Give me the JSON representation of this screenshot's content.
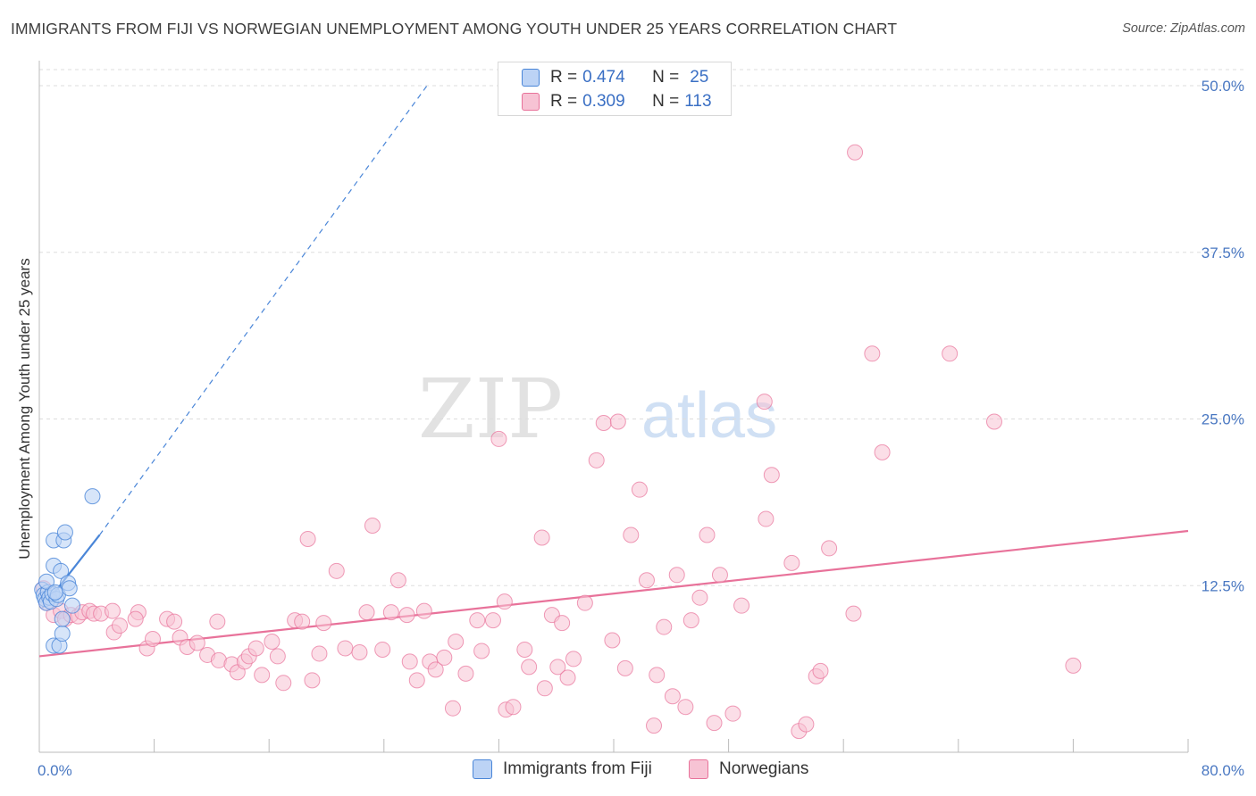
{
  "title": "IMMIGRANTS FROM FIJI VS NORWEGIAN UNEMPLOYMENT AMONG YOUTH UNDER 25 YEARS CORRELATION CHART",
  "source": "Source: ZipAtlas.com",
  "watermark": {
    "zip": "ZIP",
    "atlas": "atlas"
  },
  "colors": {
    "fiji": "#4a86d8",
    "fiji_fill": "#bcd3f5",
    "norwegians": "#e8729a",
    "norwegians_fill": "#f7c3d4",
    "axis_text": "#4a78c2",
    "grid": "#dddddd"
  },
  "legend": {
    "fiji": {
      "r_label": "R =",
      "r_value": "0.474",
      "n_label": "N =",
      "n_value": "25"
    },
    "norwegians": {
      "r_label": "R =",
      "r_value": "0.309",
      "n_label": "N =",
      "n_value": "113"
    }
  },
  "chart_data": {
    "type": "scatter",
    "title": "IMMIGRANTS FROM FIJI VS NORWEGIAN UNEMPLOYMENT AMONG YOUTH UNDER 25 YEARS CORRELATION CHART",
    "xlabel": "",
    "ylabel": "Unemployment Among Youth under 25 years",
    "xlim": [
      0,
      80
    ],
    "ylim": [
      0,
      50
    ],
    "x_tick_labels": [
      "0.0%",
      "80.0%"
    ],
    "y_ticks": [
      12.5,
      25.0,
      37.5,
      50.0
    ],
    "y_tick_labels": [
      "12.5%",
      "25.0%",
      "37.5%",
      "50.0%"
    ],
    "grid": true,
    "legend_position": "top-center",
    "series": [
      {
        "name": "Immigrants from Fiji",
        "R": 0.474,
        "N": 25,
        "points": [
          [
            0.2,
            12.2
          ],
          [
            0.3,
            11.8
          ],
          [
            0.4,
            11.5
          ],
          [
            0.5,
            11.2
          ],
          [
            0.6,
            12.0
          ],
          [
            0.7,
            11.6
          ],
          [
            0.8,
            11.3
          ],
          [
            0.9,
            11.9
          ],
          [
            1.0,
            15.9
          ],
          [
            1.0,
            14.0
          ],
          [
            1.0,
            8.0
          ],
          [
            1.2,
            11.5
          ],
          [
            1.3,
            11.8
          ],
          [
            1.4,
            8.0
          ],
          [
            1.5,
            13.6
          ],
          [
            1.6,
            8.9
          ],
          [
            1.7,
            15.9
          ],
          [
            1.8,
            16.5
          ],
          [
            2.0,
            12.7
          ],
          [
            2.1,
            12.3
          ],
          [
            2.3,
            11.0
          ],
          [
            3.7,
            19.2
          ],
          [
            0.5,
            12.8
          ],
          [
            1.1,
            12.0
          ],
          [
            1.6,
            10.0
          ]
        ],
        "trend": {
          "x0": 0.2,
          "y0": 10.8,
          "x1": 4.2,
          "y1": 16.3,
          "dashed_to": {
            "x": 27.0,
            "y": 50.0
          }
        }
      },
      {
        "name": "Norwegians",
        "R": 0.309,
        "N": 113,
        "points": [
          [
            0.3,
            12.3
          ],
          [
            0.5,
            11.2
          ],
          [
            1.0,
            10.3
          ],
          [
            1.5,
            10.6
          ],
          [
            1.8,
            10.0
          ],
          [
            2.2,
            10.3
          ],
          [
            2.7,
            10.2
          ],
          [
            3.0,
            10.5
          ],
          [
            3.5,
            10.6
          ],
          [
            3.8,
            10.4
          ],
          [
            4.3,
            10.4
          ],
          [
            5.1,
            10.6
          ],
          [
            5.2,
            9.0
          ],
          [
            5.6,
            9.5
          ],
          [
            6.9,
            10.5
          ],
          [
            6.7,
            10.0
          ],
          [
            7.5,
            7.8
          ],
          [
            7.9,
            8.5
          ],
          [
            8.9,
            10.0
          ],
          [
            9.4,
            9.8
          ],
          [
            9.8,
            8.6
          ],
          [
            10.3,
            7.9
          ],
          [
            11.0,
            8.2
          ],
          [
            11.7,
            7.3
          ],
          [
            12.4,
            9.8
          ],
          [
            12.5,
            6.9
          ],
          [
            13.4,
            6.6
          ],
          [
            13.8,
            6.0
          ],
          [
            14.3,
            6.8
          ],
          [
            14.6,
            7.2
          ],
          [
            15.1,
            7.8
          ],
          [
            15.5,
            5.8
          ],
          [
            16.2,
            8.3
          ],
          [
            16.6,
            7.2
          ],
          [
            17.0,
            5.2
          ],
          [
            17.8,
            9.9
          ],
          [
            18.3,
            9.8
          ],
          [
            18.7,
            16.0
          ],
          [
            19.0,
            5.4
          ],
          [
            19.5,
            7.4
          ],
          [
            19.8,
            9.7
          ],
          [
            20.7,
            13.6
          ],
          [
            21.3,
            7.8
          ],
          [
            22.3,
            7.5
          ],
          [
            22.8,
            10.5
          ],
          [
            23.2,
            17.0
          ],
          [
            23.9,
            7.7
          ],
          [
            24.5,
            10.5
          ],
          [
            25.0,
            12.9
          ],
          [
            25.6,
            10.3
          ],
          [
            25.8,
            6.8
          ],
          [
            26.3,
            5.4
          ],
          [
            26.8,
            10.6
          ],
          [
            27.2,
            6.8
          ],
          [
            27.6,
            6.2
          ],
          [
            28.2,
            7.1
          ],
          [
            28.8,
            3.3
          ],
          [
            29.0,
            8.3
          ],
          [
            29.7,
            5.9
          ],
          [
            30.5,
            9.9
          ],
          [
            30.8,
            7.6
          ],
          [
            31.6,
            9.9
          ],
          [
            32.0,
            23.5
          ],
          [
            32.4,
            11.3
          ],
          [
            32.5,
            3.2
          ],
          [
            33.0,
            3.4
          ],
          [
            33.8,
            7.7
          ],
          [
            34.1,
            6.4
          ],
          [
            35.0,
            16.1
          ],
          [
            35.2,
            4.8
          ],
          [
            35.7,
            10.3
          ],
          [
            36.1,
            6.4
          ],
          [
            36.4,
            9.7
          ],
          [
            36.8,
            5.6
          ],
          [
            37.2,
            7.0
          ],
          [
            38.0,
            11.2
          ],
          [
            38.8,
            21.9
          ],
          [
            39.3,
            24.7
          ],
          [
            39.9,
            8.4
          ],
          [
            40.3,
            24.8
          ],
          [
            40.8,
            6.3
          ],
          [
            41.2,
            16.3
          ],
          [
            41.8,
            19.7
          ],
          [
            42.3,
            12.9
          ],
          [
            42.8,
            2.0
          ],
          [
            43.0,
            5.8
          ],
          [
            43.5,
            9.4
          ],
          [
            44.1,
            4.2
          ],
          [
            44.4,
            13.3
          ],
          [
            45.0,
            3.4
          ],
          [
            45.4,
            9.9
          ],
          [
            46.0,
            11.6
          ],
          [
            46.5,
            16.3
          ],
          [
            47.0,
            2.2
          ],
          [
            47.4,
            13.3
          ],
          [
            48.3,
            2.9
          ],
          [
            48.9,
            11.0
          ],
          [
            50.5,
            26.3
          ],
          [
            50.6,
            17.5
          ],
          [
            51.0,
            20.8
          ],
          [
            52.4,
            14.2
          ],
          [
            52.9,
            1.6
          ],
          [
            53.4,
            2.1
          ],
          [
            54.1,
            5.7
          ],
          [
            54.4,
            6.1
          ],
          [
            55.0,
            15.3
          ],
          [
            56.7,
            10.4
          ],
          [
            56.8,
            45.0
          ],
          [
            58.0,
            29.9
          ],
          [
            58.7,
            22.5
          ],
          [
            63.4,
            29.9
          ],
          [
            66.5,
            24.8
          ],
          [
            72.0,
            6.5
          ]
        ],
        "trend": {
          "x0": 0.0,
          "y0": 7.2,
          "x1": 80.0,
          "y1": 16.6
        }
      }
    ]
  }
}
